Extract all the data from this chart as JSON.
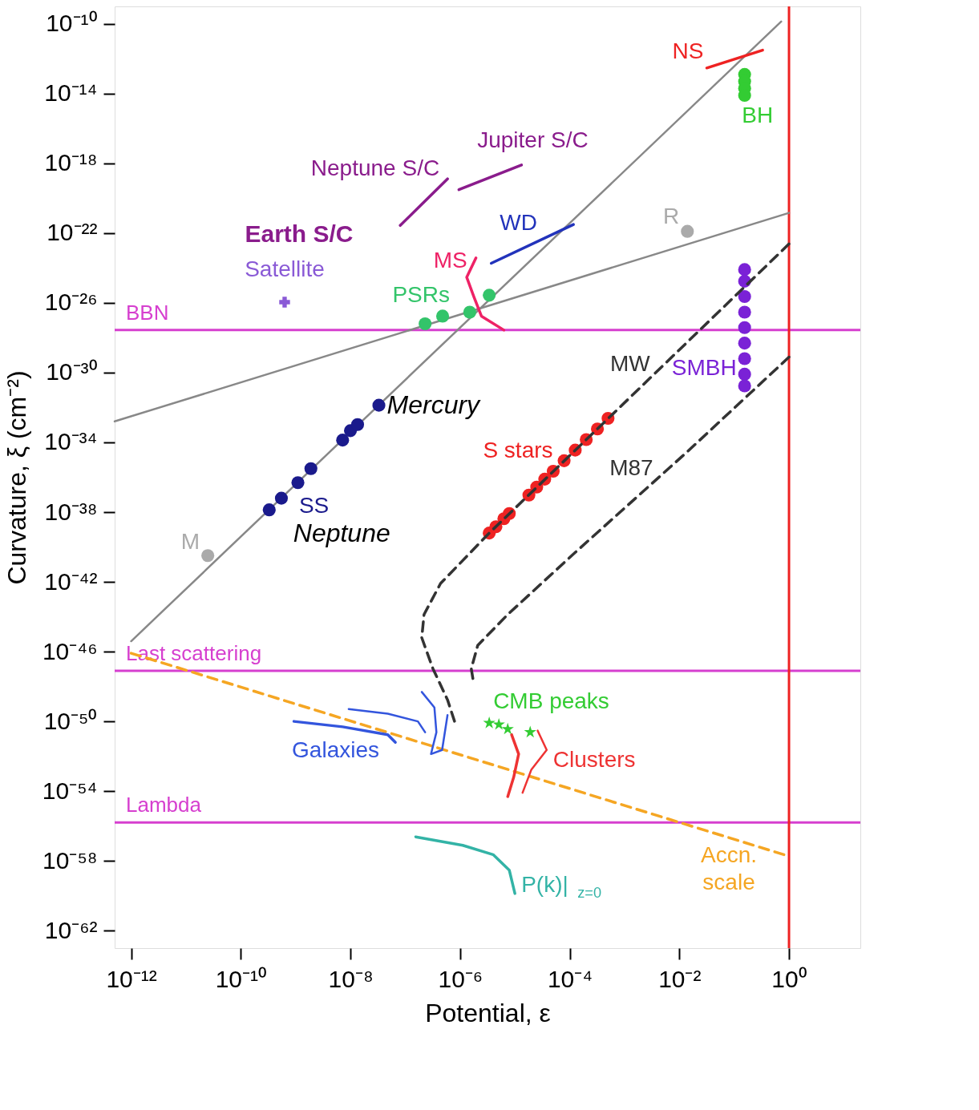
{
  "chart_data": {
    "type": "scatter",
    "xlabel": "Potential, ε",
    "ylabel": "Curvature, ξ (cm⁻²)",
    "log": "xy",
    "grid": false,
    "legend": false,
    "xlim": [
      5e-13,
      20
    ],
    "ylim": [
      1e-63,
      1e-09
    ],
    "xticks": [
      {
        "value": 1e-12,
        "label": "10⁻¹²"
      },
      {
        "value": 1e-10,
        "label": "10⁻¹⁰"
      },
      {
        "value": 1e-08,
        "label": "10⁻⁸"
      },
      {
        "value": 1e-06,
        "label": "10⁻⁶"
      },
      {
        "value": 0.0001,
        "label": "10⁻⁴"
      },
      {
        "value": 0.01,
        "label": "10⁻²"
      },
      {
        "value": 1,
        "label": "10⁰"
      }
    ],
    "yticks": [
      {
        "value": 1e-10,
        "label": "10⁻¹⁰"
      },
      {
        "value": 1e-14,
        "label": "10⁻¹⁴"
      },
      {
        "value": 1e-18,
        "label": "10⁻¹⁸"
      },
      {
        "value": 1e-22,
        "label": "10⁻²²"
      },
      {
        "value": 1e-26,
        "label": "10⁻²⁶"
      },
      {
        "value": 1e-30,
        "label": "10⁻³⁰"
      },
      {
        "value": 1e-34,
        "label": "10⁻³⁴"
      },
      {
        "value": 1e-38,
        "label": "10⁻³⁸"
      },
      {
        "value": 1e-42,
        "label": "10⁻⁴²"
      },
      {
        "value": 1e-46,
        "label": "10⁻⁴⁶"
      },
      {
        "value": 1e-50,
        "label": "10⁻⁵⁰"
      },
      {
        "value": 1e-54,
        "label": "10⁻⁵⁴"
      },
      {
        "value": 1e-58,
        "label": "10⁻⁵⁸"
      },
      {
        "value": 1e-62,
        "label": "10⁻⁶²"
      }
    ],
    "ref_lines": [
      {
        "axis": "y",
        "value": 2.75e-28,
        "label": "BBN",
        "color": "#d63fcf"
      },
      {
        "axis": "y",
        "value": 8e-48,
        "label": "Last scattering",
        "color": "#d63fcf"
      },
      {
        "axis": "y",
        "value": 1.6e-56,
        "label": "Lambda",
        "color": "#d63fcf"
      },
      {
        "axis": "x",
        "value": 1,
        "color": "#ee2222"
      }
    ],
    "series": [
      {
        "type": "line",
        "color": "#888888",
        "x": [
          1e-12,
          0.72
        ],
        "values": [
          3.98e-46,
          1.35e-10
        ]
      },
      {
        "type": "line",
        "color": "#888888",
        "x": [
          5e-13,
          1
        ],
        "values": [
          1.6e-33,
          1.45e-21
        ]
      },
      {
        "name": "M",
        "marker": "circle",
        "color": "#aaaaaa",
        "x": [
          2.5e-11
        ],
        "values": [
          3.2e-41
        ]
      },
      {
        "name": "R",
        "marker": "circle",
        "color": "#aaaaaa",
        "x": [
          0.014
        ],
        "values": [
          1.26e-22
        ]
      },
      {
        "name": "Satellite",
        "marker": "cross",
        "color": "#8a5ad6",
        "x": [
          6.3e-10
        ],
        "values": [
          1.1e-26
        ]
      },
      {
        "name": "SS",
        "marker": "circle",
        "color": "#1a1a8c",
        "x": [
          3.3e-10,
          5.5e-10,
          1.1e-09,
          1.9e-09,
          7.2e-09,
          1e-08,
          1.35e-08,
          3.3e-08
        ],
        "values": [
          1.35e-38,
          6.3e-38,
          4.9e-37,
          3.1e-36,
          1.35e-34,
          4.7e-34,
          1.05e-33,
          1.35e-32
        ]
      },
      {
        "name": "PSRs",
        "marker": "circle",
        "color": "#33c46a",
        "x": [
          2.3e-07,
          4.8e-07,
          1.5e-06,
          3.4e-06
        ],
        "values": [
          6.3e-28,
          1.74e-27,
          2.95e-27,
          2.75e-26
        ]
      },
      {
        "name": "S stars",
        "marker": "circle",
        "color": "#ee2222",
        "x": [
          3.4e-06,
          4.5e-06,
          6.3e-06,
          7.9e-06,
          1.8e-05,
          2.5e-05,
          3.5e-05,
          5e-05,
          7.9e-05,
          0.000126,
          0.0002,
          0.00032,
          0.0005
        ],
        "values": [
          6.3e-40,
          1.45e-39,
          4.2e-39,
          8.3e-39,
          9.5e-38,
          2.75e-37,
          7.8e-37,
          2.2e-36,
          8.9e-36,
          3.6e-35,
          1.45e-34,
          5.9e-34,
          2.4e-33
        ]
      },
      {
        "name": "SMBH",
        "marker": "circle",
        "color": "#7a22d6",
        "x": [
          0.155,
          0.155,
          0.155,
          0.155,
          0.155,
          0.155,
          0.155,
          0.155,
          0.155
        ],
        "values": [
          8.1e-25,
          1.74e-25,
          2.3e-26,
          2.95e-27,
          3.8e-28,
          4.9e-29,
          6.3e-30,
          8.1e-31,
          1.74e-31
        ]
      },
      {
        "name": "BH",
        "marker": "circle",
        "color": "#33cc33",
        "x": [
          0.155,
          0.155,
          0.155,
          0.155
        ],
        "values": [
          1.26e-13,
          5e-14,
          2e-14,
          7.9e-15
        ]
      },
      {
        "type": "line",
        "name": "NS",
        "color": "#ee2222",
        "x": [
          0.0316,
          0.33
        ],
        "values": [
          2.95e-13,
          3.1e-12
        ]
      },
      {
        "type": "line",
        "name": "WD",
        "color": "#2233bb",
        "x": [
          3.7e-06,
          0.000117
        ],
        "values": [
          1.86e-24,
          3.1e-22
        ]
      },
      {
        "type": "line",
        "name": "MS",
        "color": "#ee2266",
        "x": [
          1.95e-06,
          1.32e-06,
          1.78e-06,
          2.45e-06,
          6.3e-06
        ],
        "values": [
          3.8e-24,
          2.95e-25,
          2.3e-26,
          1.74e-27,
          2.75e-28
        ]
      },
      {
        "type": "line",
        "name": "Neptune S/C",
        "color": "#8a1c8c",
        "x": [
          8.1e-08,
          5.9e-07
        ],
        "values": [
          2.75e-22,
          1.29e-19
        ]
      },
      {
        "type": "line",
        "name": "Jupiter S/C",
        "color": "#8a1c8c",
        "x": [
          9.5e-07,
          1.32e-05
        ],
        "values": [
          3.1e-20,
          8.1e-19
        ]
      },
      {
        "type": "line",
        "name": "MW",
        "color": "#333333",
        "line_style": "dashed",
        "x": [
          1,
          0.0006,
          3.4e-06,
          4.4e-07,
          2.2e-07,
          2e-07,
          3.2e-07,
          5.9e-07,
          8.1e-07
        ],
        "values": [
          2.4e-23,
          4e-33,
          6.3e-40,
          8.1e-43,
          1.35e-44,
          6.3e-46,
          1.05e-47,
          1.74e-49,
          8.1e-51
        ]
      },
      {
        "type": "line",
        "name": "M87",
        "color": "#333333",
        "line_style": "dashed",
        "x": [
          1,
          0.014,
          0.000126,
          7.4e-06,
          2.1e-06,
          1.6e-06,
          1.78e-06
        ],
        "values": [
          7.8e-30,
          2.95e-35,
          4.9e-41,
          1.35e-44,
          2.3e-46,
          1.05e-47,
          1.35e-48
        ]
      },
      {
        "type": "line",
        "name": "Accn. scale",
        "color": "#f5a623",
        "line_style": "dashed",
        "x": [
          1e-12,
          1
        ],
        "values": [
          8.1e-47,
          1.86e-58
        ]
      },
      {
        "type": "line",
        "name": "Galaxies",
        "color": "#3355dd",
        "x": [
          9.3e-10,
          7.2e-09,
          4.8e-08,
          6.6e-08
        ],
        "values": [
          1e-50,
          4.9e-51,
          1.74e-51,
          6.3e-52
        ]
      },
      {
        "type": "line",
        "color": "#3355dd",
        "x": [
          9.3e-09,
          4.8e-08,
          1.7e-07,
          2.3e-07
        ],
        "values": [
          5.1e-50,
          2.75e-50,
          1e-50,
          2.4e-51
        ]
      },
      {
        "type": "line",
        "color": "#3355dd",
        "x": [
          2e-07,
          3.4e-07,
          3.7e-07,
          2.95e-07,
          4.7e-07,
          5.9e-07
        ],
        "values": [
          4.9e-49,
          6.3e-50,
          2.4e-51,
          1.35e-52,
          2.3e-52,
          2.3e-50
        ]
      },
      {
        "type": "line",
        "name": "Clusters",
        "color": "#ee3333",
        "x": [
          8.7e-06,
          1.17e-05,
          9.5e-06,
          7.4e-06
        ],
        "values": [
          1.74e-51,
          1.35e-52,
          6.3e-54,
          4.9e-55
        ]
      },
      {
        "type": "line",
        "color": "#ee3333",
        "x": [
          2.6e-05,
          3.8e-05,
          2e-05,
          1.38e-05
        ],
        "values": [
          2.95e-51,
          2.3e-52,
          1.74e-53,
          8.1e-55
        ]
      },
      {
        "name": "CMB peaks",
        "marker": "star",
        "color": "#33cc33",
        "x": [
          3.4e-06,
          5.1e-06,
          7.4e-06,
          1.9e-05
        ],
        "values": [
          8.1e-51,
          6.6e-51,
          3.6e-51,
          2.4e-51
        ]
      },
      {
        "type": "line",
        "name": "P(k)|$_{z=0}$",
        "color": "#33b3a6",
        "x": [
          1.55e-07,
          1.12e-06,
          4e-06,
          7.9e-06,
          1e-05
        ],
        "values": [
          2.4e-57,
          7.8e-58,
          2.3e-58,
          2.95e-59,
          1.35e-60
        ]
      }
    ],
    "annotations": [
      {
        "text": "Mercury",
        "x": 3.3e-08,
        "y": 1.35e-32
      },
      {
        "text": "Neptune",
        "x": 3.3e-10,
        "y": 1.35e-38
      },
      "Earth S/C"
    ]
  }
}
